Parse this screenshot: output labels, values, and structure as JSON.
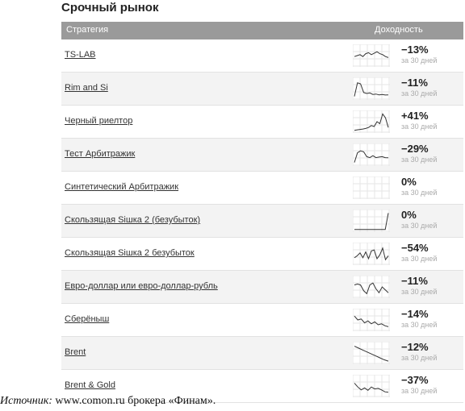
{
  "title": "Срочный рынок",
  "header": {
    "strategy": "Стратегия",
    "yield": "Доходность"
  },
  "rows": [
    {
      "name": "TS-LAB",
      "ret": "−13%",
      "period": "за 30 дней",
      "spark": [
        0.55,
        0.5,
        0.45,
        0.55,
        0.4,
        0.35,
        0.45,
        0.38,
        0.3,
        0.4,
        0.45,
        0.55,
        0.6
      ]
    },
    {
      "name": "Rim and Si",
      "ret": "−11%",
      "period": "за 30 дней",
      "spark": [
        0.9,
        0.2,
        0.25,
        0.7,
        0.75,
        0.72,
        0.8,
        0.78,
        0.82,
        0.8,
        0.83,
        0.82
      ]
    },
    {
      "name": "Черный риелтор",
      "ret": "+41%",
      "period": "за 30 дней",
      "spark": [
        0.95,
        0.92,
        0.9,
        0.88,
        0.85,
        0.8,
        0.7,
        0.75,
        0.5,
        0.6,
        0.1,
        0.3,
        0.8
      ]
    },
    {
      "name": "Тест Арбитражик",
      "ret": "−29%",
      "period": "за 30 дней",
      "spark": [
        0.9,
        0.4,
        0.3,
        0.35,
        0.6,
        0.65,
        0.55,
        0.65,
        0.62,
        0.6,
        0.65,
        0.66
      ]
    },
    {
      "name": "Синтетический Арбитражик",
      "ret": "0%",
      "period": "за 30 дней",
      "spark": []
    },
    {
      "name": "Скользящая Siшка 2 (безубыток)",
      "ret": "0%",
      "period": "за 30 дней",
      "spark": [
        0.95,
        0.95,
        0.95,
        0.95,
        0.95,
        0.95,
        0.95,
        0.95,
        0.95,
        0.95,
        0.95,
        0.1
      ]
    },
    {
      "name": "Скользящая Siшка 2 безубыток",
      "ret": "−54%",
      "period": "за 30 дней",
      "spark": [
        0.7,
        0.6,
        0.45,
        0.7,
        0.4,
        0.75,
        0.35,
        0.3,
        0.75,
        0.55,
        0.2,
        0.8,
        0.6
      ]
    },
    {
      "name": "Евро-доллар или евро-доллар-рубль",
      "ret": "−11%",
      "period": "за 30 дней",
      "spark": [
        0.4,
        0.35,
        0.4,
        0.7,
        0.85,
        0.4,
        0.3,
        0.6,
        0.8,
        0.5,
        0.65,
        0.8
      ]
    },
    {
      "name": "Сберёныш",
      "ret": "−14%",
      "period": "за 30 дней",
      "spark": [
        0.3,
        0.5,
        0.45,
        0.65,
        0.55,
        0.7,
        0.6,
        0.75,
        0.7,
        0.8,
        0.85
      ]
    },
    {
      "name": "Brent",
      "ret": "−12%",
      "period": "за 30 дней",
      "spark": [
        0.15,
        0.25,
        0.35,
        0.45,
        0.55,
        0.65,
        0.75,
        0.85,
        0.92
      ]
    },
    {
      "name": "Brent & Gold",
      "ret": "−37%",
      "period": "за 30 дней",
      "spark": [
        0.35,
        0.55,
        0.7,
        0.6,
        0.72,
        0.55,
        0.65,
        0.62,
        0.7,
        0.8,
        0.82
      ]
    }
  ],
  "source": {
    "label": "Источник:",
    "text": " www.comon.ru брокера «Финам»."
  },
  "colors": {
    "header_bg": "#9a9a9a",
    "spark_line": "#333333",
    "grid": "#e6e6e6"
  }
}
